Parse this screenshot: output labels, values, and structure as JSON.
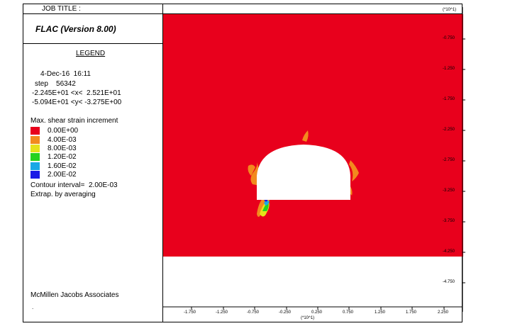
{
  "job_title": "JOB TITLE :",
  "app_title": "FLAC (Version 8.00)",
  "legend": {
    "heading": "LEGEND",
    "date": "4-Dec-16  16:11",
    "step": "step    56342",
    "x_range": "-2.245E+01 <x<  2.521E+01",
    "y_range": "-5.094E+01 <y< -3.275E+00",
    "contour_title": "Max. shear strain increment",
    "contours": [
      {
        "label": "0.00E+00",
        "color": "#e8001c"
      },
      {
        "label": "4.00E-03",
        "color": "#f28a1e"
      },
      {
        "label": "8.00E-03",
        "color": "#e6e21a"
      },
      {
        "label": "1.20E-02",
        "color": "#26d21e"
      },
      {
        "label": "1.60E-02",
        "color": "#1aa8e6"
      },
      {
        "label": "2.00E-02",
        "color": "#1a1ae6"
      }
    ],
    "contour_interval": "Contour interval=  2.00E-03",
    "extrap": "Extrap. by averaging"
  },
  "company": "McMillen Jacobs Associates",
  "axes": {
    "y_multiplier": "(*10^1)",
    "y_ticks": [
      "-0.750",
      "-1.250",
      "-1.750",
      "-2.250",
      "-2.750",
      "-3.250",
      "-3.750",
      "-4.250",
      "-4.750"
    ],
    "x_ticks": [
      "-1.750",
      "-1.250",
      "-0.750",
      "-0.250",
      "0.250",
      "0.750",
      "1.250",
      "1.750",
      "2.250"
    ],
    "x_multiplier": "(*10^1)"
  },
  "colors": {
    "field": "#e8001c",
    "frame": "#000000"
  }
}
